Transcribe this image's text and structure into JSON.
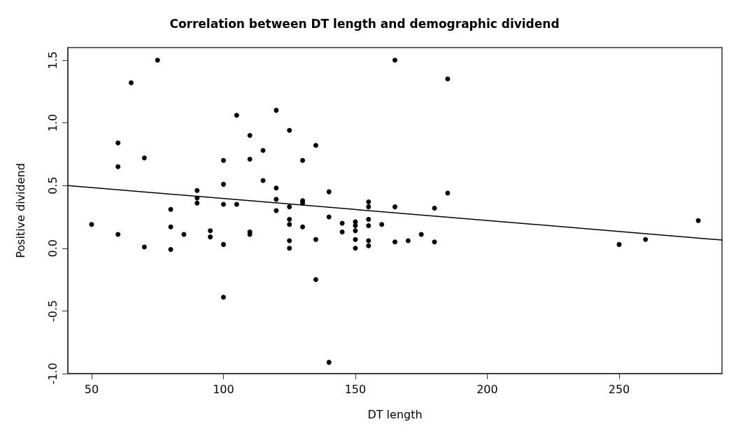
{
  "chart_data": {
    "type": "scatter",
    "title": "Correlation between DT length and demographic dividend",
    "xlabel": "DT length",
    "ylabel": "Positive dividend",
    "xlim": [
      41,
      289
    ],
    "xticks": [
      50,
      100,
      150,
      200,
      250
    ],
    "ylim": [
      -1.0,
      1.6
    ],
    "yticks": [
      {
        "value": -1,
        "label": "-1.0"
      },
      {
        "value": -0.5,
        "label": "-0.5"
      },
      {
        "value": 0,
        "label": "0.0"
      },
      {
        "value": 0.5,
        "label": "0.5"
      },
      {
        "value": 1,
        "label": "1.0"
      },
      {
        "value": 1.5,
        "label": "1.5"
      }
    ],
    "grid": false,
    "marker": "circle",
    "series": [
      {
        "color": "#000000",
        "x": [
          50,
          60,
          60,
          60,
          65,
          70,
          70,
          75,
          80,
          80,
          80,
          85,
          90,
          90,
          90,
          95,
          95,
          100,
          100,
          100,
          100,
          100,
          105,
          105,
          110,
          110,
          110,
          110,
          115,
          115,
          120,
          120,
          120,
          120,
          125,
          125,
          125,
          125,
          125,
          125,
          130,
          130,
          130,
          130,
          135,
          135,
          135,
          140,
          140,
          140,
          145,
          145,
          150,
          150,
          150,
          150,
          150,
          155,
          155,
          155,
          155,
          155,
          155,
          160,
          165,
          165,
          165,
          170,
          175,
          180,
          180,
          185,
          185,
          250,
          260,
          280
        ],
        "values": [
          0.19,
          0.84,
          0.65,
          0.11,
          1.32,
          0.72,
          0.01,
          1.5,
          0.31,
          0.17,
          -0.01,
          0.11,
          0.46,
          0.4,
          0.36,
          0.14,
          0.09,
          0.7,
          0.51,
          0.35,
          0.03,
          -0.39,
          1.06,
          0.35,
          0.9,
          0.71,
          0.13,
          0.11,
          0.78,
          0.54,
          1.1,
          0.48,
          0.39,
          0.3,
          0.94,
          0.33,
          0.23,
          0.19,
          0.06,
          0.0,
          0.7,
          0.38,
          0.36,
          0.17,
          0.82,
          0.07,
          -0.25,
          0.45,
          0.25,
          -0.91,
          0.2,
          0.13,
          0.21,
          0.18,
          0.14,
          0.07,
          0.0,
          0.37,
          0.33,
          0.23,
          0.18,
          0.06,
          0.02,
          0.19,
          1.5,
          0.33,
          0.05,
          0.06,
          0.11,
          0.32,
          0.05,
          1.35,
          0.44,
          0.03,
          0.07,
          0.22
        ]
      },
      {
        "type": "line",
        "color": "#000000",
        "marker": "none",
        "line_style": "solid",
        "x": [
          41,
          289
        ],
        "values": [
          0.5,
          0.065
        ]
      }
    ]
  }
}
